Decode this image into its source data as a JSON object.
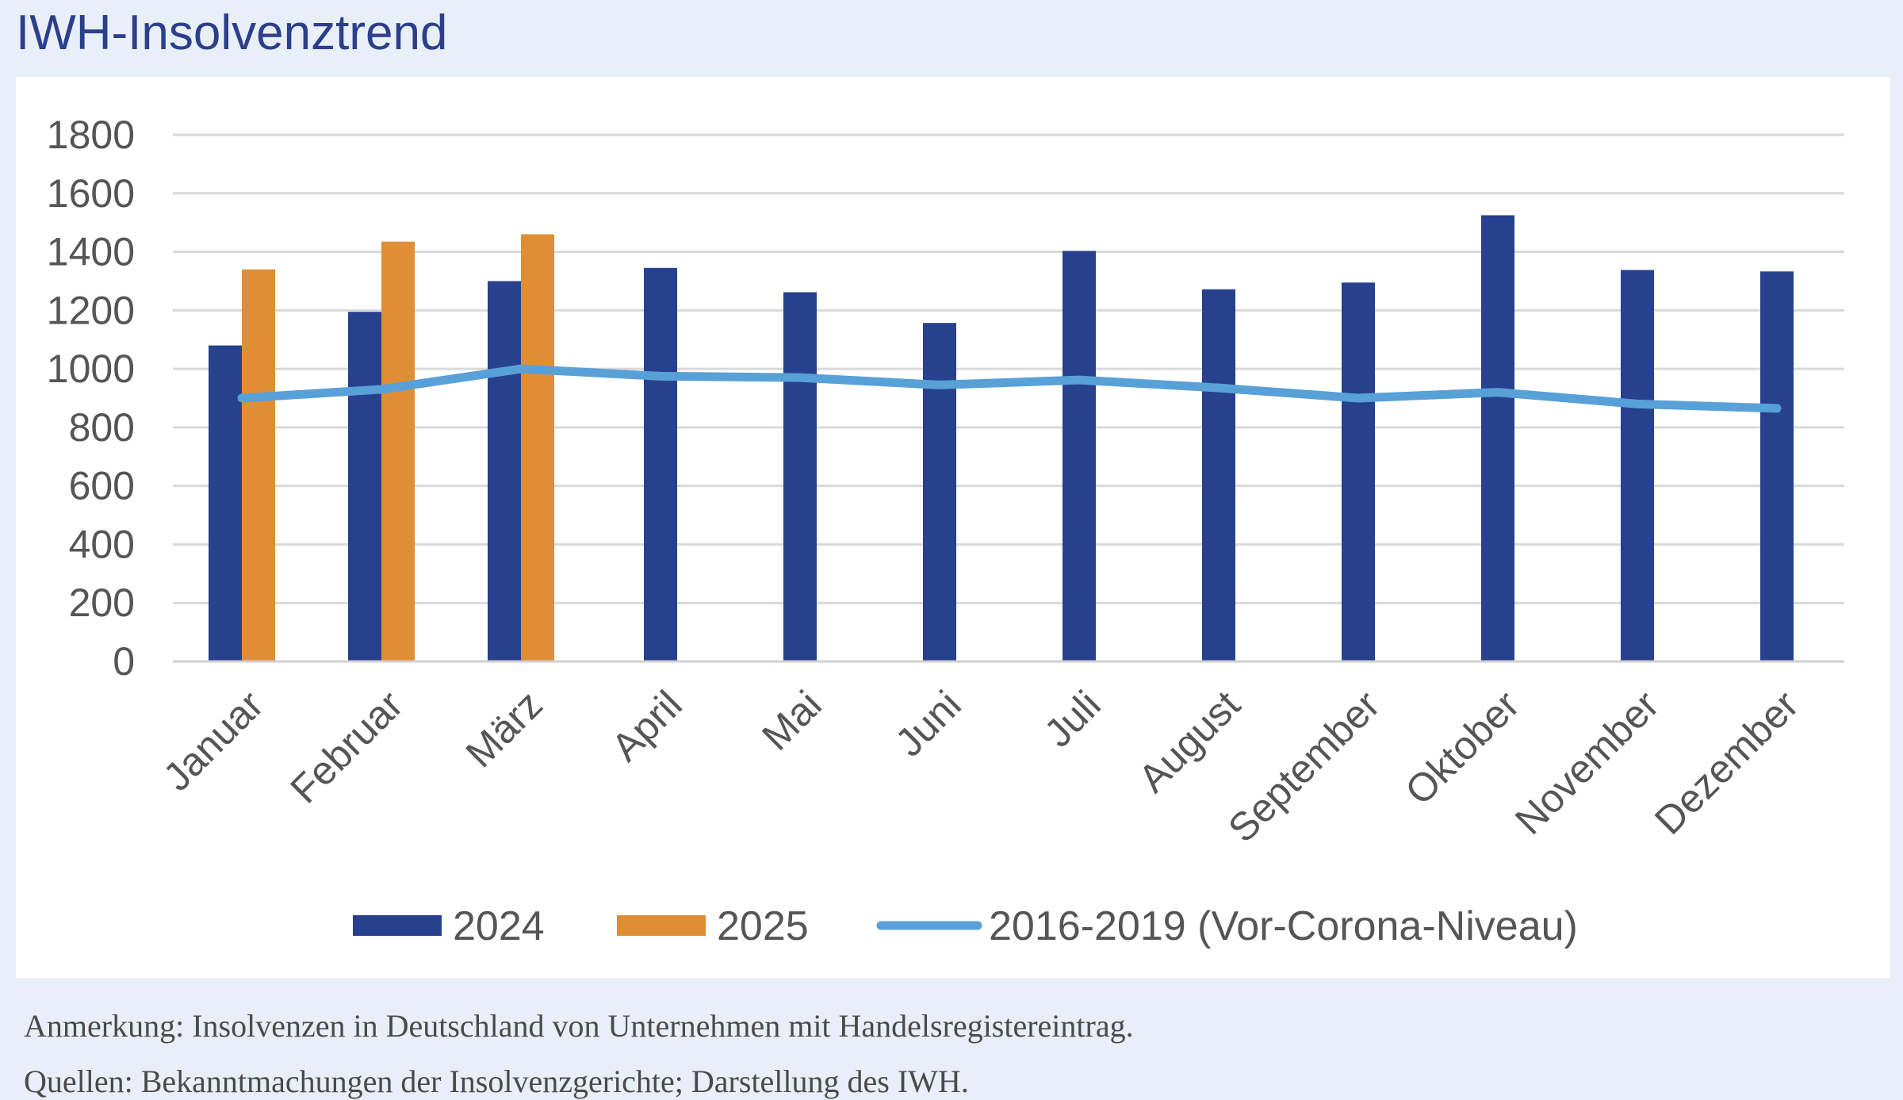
{
  "header": {
    "title_line1": "IWH-Insolvenztrend",
    "title_line2": "IWH-Insolvenztrend"
  },
  "chart_data": {
    "type": "bar",
    "title": "",
    "xlabel": "",
    "ylabel": "",
    "ylim": [
      0,
      1800
    ],
    "yticks": [
      "0",
      "200",
      "400",
      "600",
      "800",
      "1000",
      "1200",
      "1400",
      "1600",
      "1800"
    ],
    "grid": true,
    "legend_position": "bottom",
    "categories": [
      "Januar",
      "Februar",
      "März",
      "April",
      "Mai",
      "Juni",
      "Juli",
      "August",
      "September",
      "Oktober",
      "November",
      "Dezember"
    ],
    "series": [
      {
        "name": "2024",
        "type": "bar",
        "color": "#27418e",
        "values": [
          1080,
          1195,
          1300,
          1345,
          1262,
          1157,
          1403,
          1272,
          1295,
          1525,
          1338,
          1333
        ]
      },
      {
        "name": "2025",
        "type": "bar",
        "color": "#e08e35",
        "values": [
          1340,
          1435,
          1460,
          null,
          null,
          null,
          null,
          null,
          null,
          null,
          null,
          null
        ]
      },
      {
        "name": "2016-2019 (Vor-Corona-Niveau)",
        "type": "line",
        "color": "#58a0d8",
        "values": [
          900,
          930,
          1000,
          975,
          970,
          945,
          962,
          935,
          900,
          920,
          880,
          865
        ]
      }
    ]
  },
  "notes": {
    "annotation": "Anmerkung: Insolvenzen in Deutschland von Unternehmen mit Handelsregistereintrag.",
    "sources": "Quellen: Bekanntmachungen der Insolvenzgerichte; Darstellung des IWH."
  }
}
